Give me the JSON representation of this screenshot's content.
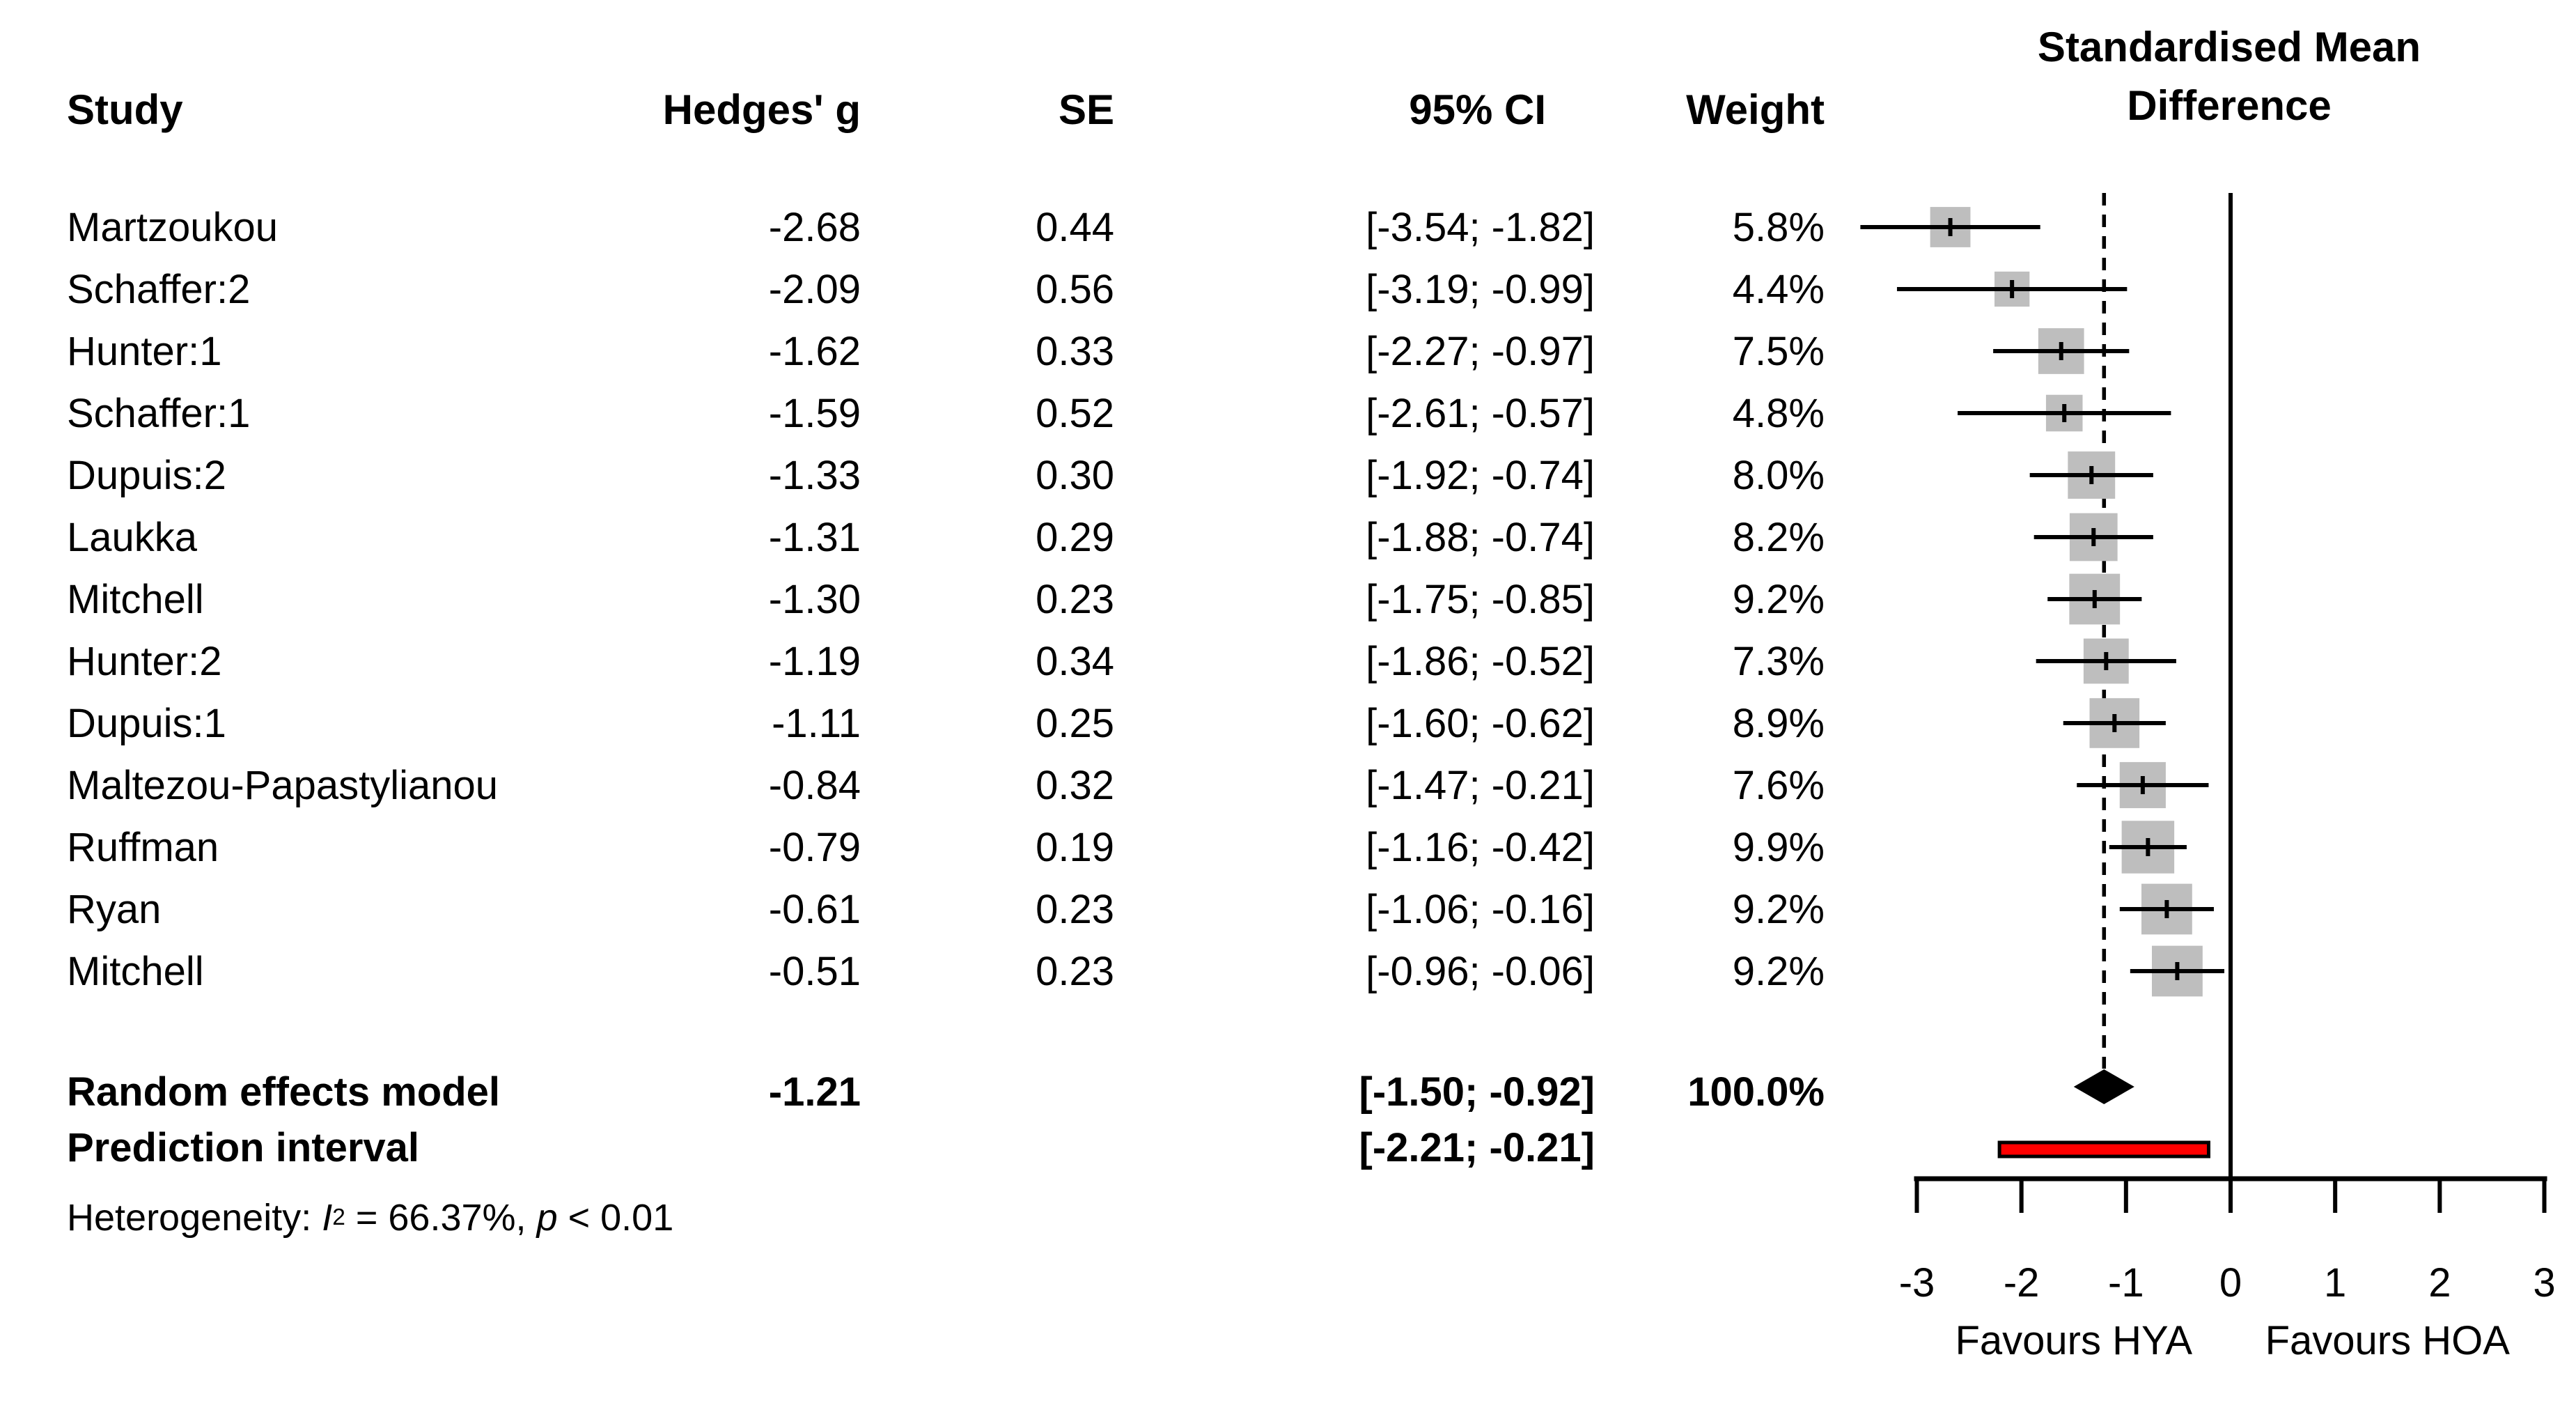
{
  "columns": {
    "study": "Study",
    "g": "Hedges' g",
    "se": "SE",
    "ci": "95% CI",
    "weight": "Weight"
  },
  "plot_title": {
    "line1": "Standardised Mean",
    "line2": "Difference"
  },
  "rows": [
    {
      "study": "Martzoukou",
      "g": "-2.68",
      "se": "0.44",
      "ci": "[-3.54; -1.82]",
      "weight": "5.8%"
    },
    {
      "study": "Schaffer:2",
      "g": "-2.09",
      "se": "0.56",
      "ci": "[-3.19; -0.99]",
      "weight": "4.4%"
    },
    {
      "study": "Hunter:1",
      "g": "-1.62",
      "se": "0.33",
      "ci": "[-2.27; -0.97]",
      "weight": "7.5%"
    },
    {
      "study": "Schaffer:1",
      "g": "-1.59",
      "se": "0.52",
      "ci": "[-2.61; -0.57]",
      "weight": "4.8%"
    },
    {
      "study": "Dupuis:2",
      "g": "-1.33",
      "se": "0.30",
      "ci": "[-1.92; -0.74]",
      "weight": "8.0%"
    },
    {
      "study": "Laukka",
      "g": "-1.31",
      "se": "0.29",
      "ci": "[-1.88; -0.74]",
      "weight": "8.2%"
    },
    {
      "study": "Mitchell",
      "g": "-1.30",
      "se": "0.23",
      "ci": "[-1.75; -0.85]",
      "weight": "9.2%"
    },
    {
      "study": "Hunter:2",
      "g": "-1.19",
      "se": "0.34",
      "ci": "[-1.86; -0.52]",
      "weight": "7.3%"
    },
    {
      "study": "Dupuis:1",
      "g": "-1.11",
      "se": "0.25",
      "ci": "[-1.60; -0.62]",
      "weight": "8.9%"
    },
    {
      "study": "Maltezou-Papastylianou",
      "g": "-0.84",
      "se": "0.32",
      "ci": "[-1.47; -0.21]",
      "weight": "7.6%"
    },
    {
      "study": "Ruffman",
      "g": "-0.79",
      "se": "0.19",
      "ci": "[-1.16; -0.42]",
      "weight": "9.9%"
    },
    {
      "study": "Ryan",
      "g": "-0.61",
      "se": "0.23",
      "ci": "[-1.06; -0.16]",
      "weight": "9.2%"
    },
    {
      "study": "Mitchell",
      "g": "-0.51",
      "se": "0.23",
      "ci": "[-0.96; -0.06]",
      "weight": "9.2%"
    }
  ],
  "summary": {
    "re_label": "Random effects model",
    "re_g": "-1.21",
    "re_ci": "[-1.50; -0.92]",
    "re_weight": "100.0%",
    "pi_label": "Prediction interval",
    "pi_ci": "[-2.21; -0.21]"
  },
  "heterogeneity_text": {
    "prefix": "Heterogeneity: ",
    "stat": "I",
    "sup": "2",
    "mid": " = 66.37%, ",
    "pvar": "p",
    "rest": " < 0.01"
  },
  "colors": {
    "square": "#bebebe",
    "diamond": "#000000",
    "prediction_fill": "#ff0000",
    "line": "#000000",
    "background": "#ffffff"
  },
  "chart_data": {
    "type": "forest",
    "title": "Standardised Mean Difference",
    "effect_measure": "Hedges' g",
    "x_range": [
      -3,
      3
    ],
    "x_ticks": [
      -3,
      -2,
      -1,
      0,
      1,
      2,
      3
    ],
    "null_line": 0,
    "pooled_dashed_line": -1.21,
    "studies": [
      {
        "name": "Martzoukou",
        "estimate": -2.68,
        "se": 0.44,
        "lower": -3.54,
        "upper": -1.82,
        "weight_pct": 5.8
      },
      {
        "name": "Schaffer:2",
        "estimate": -2.09,
        "se": 0.56,
        "lower": -3.19,
        "upper": -0.99,
        "weight_pct": 4.4
      },
      {
        "name": "Hunter:1",
        "estimate": -1.62,
        "se": 0.33,
        "lower": -2.27,
        "upper": -0.97,
        "weight_pct": 7.5
      },
      {
        "name": "Schaffer:1",
        "estimate": -1.59,
        "se": 0.52,
        "lower": -2.61,
        "upper": -0.57,
        "weight_pct": 4.8
      },
      {
        "name": "Dupuis:2",
        "estimate": -1.33,
        "se": 0.3,
        "lower": -1.92,
        "upper": -0.74,
        "weight_pct": 8.0
      },
      {
        "name": "Laukka",
        "estimate": -1.31,
        "se": 0.29,
        "lower": -1.88,
        "upper": -0.74,
        "weight_pct": 8.2
      },
      {
        "name": "Mitchell",
        "estimate": -1.3,
        "se": 0.23,
        "lower": -1.75,
        "upper": -0.85,
        "weight_pct": 9.2
      },
      {
        "name": "Hunter:2",
        "estimate": -1.19,
        "se": 0.34,
        "lower": -1.86,
        "upper": -0.52,
        "weight_pct": 7.3
      },
      {
        "name": "Dupuis:1",
        "estimate": -1.11,
        "se": 0.25,
        "lower": -1.6,
        "upper": -0.62,
        "weight_pct": 8.9
      },
      {
        "name": "Maltezou-Papastylianou",
        "estimate": -0.84,
        "se": 0.32,
        "lower": -1.47,
        "upper": -0.21,
        "weight_pct": 7.6
      },
      {
        "name": "Ruffman",
        "estimate": -0.79,
        "se": 0.19,
        "lower": -1.16,
        "upper": -0.42,
        "weight_pct": 9.9
      },
      {
        "name": "Ryan",
        "estimate": -0.61,
        "se": 0.23,
        "lower": -1.06,
        "upper": -0.16,
        "weight_pct": 9.2
      },
      {
        "name": "Mitchell",
        "estimate": -0.51,
        "se": 0.23,
        "lower": -0.96,
        "upper": -0.06,
        "weight_pct": 9.2
      }
    ],
    "pooled": {
      "label": "Random effects model",
      "estimate": -1.21,
      "lower": -1.5,
      "upper": -0.92,
      "weight_pct": 100.0
    },
    "prediction_interval": {
      "lower": -2.21,
      "upper": -0.21
    },
    "heterogeneity": {
      "I2_pct": 66.37,
      "p": "< 0.01"
    },
    "axis_annotations": {
      "left": "Favours HYA",
      "right": "Favours HOA"
    },
    "legend_position": "none",
    "grid": false
  }
}
